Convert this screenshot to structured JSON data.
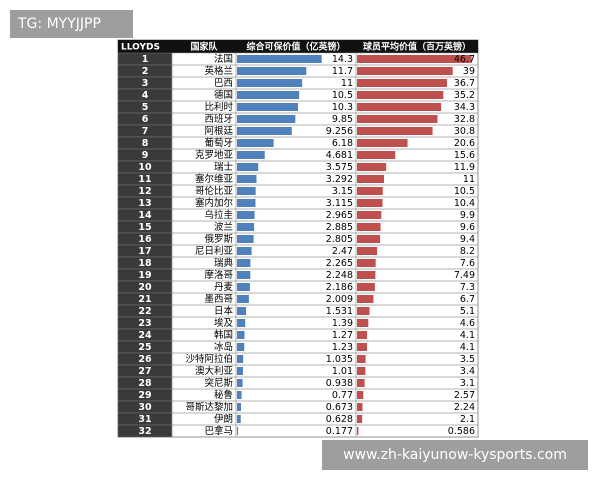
{
  "watermark_top": "TG: MYYJJPP",
  "watermark_bottom": "www.zh-kaiyunow-kysports.com",
  "table": {
    "header": [
      "LLOYDS",
      "国家队",
      "综合可保价值（亿英镑）",
      "球员平均价值（百万英镑）"
    ],
    "colors": [
      "#4f81bd",
      "#c0504d"
    ],
    "rows": [
      {
        "rank": 1,
        "country": "法国",
        "value": 14.3,
        "avg": 46.7
      },
      {
        "rank": 2,
        "country": "英格兰",
        "value": 11.7,
        "avg": 39
      },
      {
        "rank": 3,
        "country": "巴西",
        "value": 11,
        "avg": 36.7
      },
      {
        "rank": 4,
        "country": "德国",
        "value": 10.5,
        "avg": 35.2
      },
      {
        "rank": 5,
        "country": "比利时",
        "value": 10.3,
        "avg": 34.3
      },
      {
        "rank": 6,
        "country": "西班牙",
        "value": 9.85,
        "avg": 32.8
      },
      {
        "rank": 7,
        "country": "阿根廷",
        "value": 9.256,
        "avg": 30.8
      },
      {
        "rank": 8,
        "country": "葡萄牙",
        "value": 6.18,
        "avg": 20.6
      },
      {
        "rank": 9,
        "country": "克罗地亚",
        "value": 4.681,
        "avg": 15.6
      },
      {
        "rank": 10,
        "country": "瑞士",
        "value": 3.575,
        "avg": 11.9
      },
      {
        "rank": 11,
        "country": "塞尔维亚",
        "value": 3.292,
        "avg": 11
      },
      {
        "rank": 12,
        "country": "哥伦比亚",
        "value": 3.15,
        "avg": 10.5
      },
      {
        "rank": 13,
        "country": "塞内加尔",
        "value": 3.115,
        "avg": 10.4
      },
      {
        "rank": 14,
        "country": "乌拉圭",
        "value": 2.965,
        "avg": 9.9
      },
      {
        "rank": 15,
        "country": "波兰",
        "value": 2.885,
        "avg": 9.6
      },
      {
        "rank": 16,
        "country": "俄罗斯",
        "value": 2.805,
        "avg": 9.4
      },
      {
        "rank": 17,
        "country": "尼日利亚",
        "value": 2.47,
        "avg": 8.2
      },
      {
        "rank": 18,
        "country": "瑞典",
        "value": 2.265,
        "avg": 7.6
      },
      {
        "rank": 19,
        "country": "摩洛哥",
        "value": 2.248,
        "avg": 7.49
      },
      {
        "rank": 20,
        "country": "丹麦",
        "value": 2.186,
        "avg": 7.3
      },
      {
        "rank": 21,
        "country": "墨西哥",
        "value": 2.009,
        "avg": 6.7
      },
      {
        "rank": 22,
        "country": "日本",
        "value": 1.531,
        "avg": 5.1
      },
      {
        "rank": 23,
        "country": "埃及",
        "value": 1.39,
        "avg": 4.6
      },
      {
        "rank": 24,
        "country": "韩国",
        "value": 1.27,
        "avg": 4.1
      },
      {
        "rank": 25,
        "country": "冰岛",
        "value": 1.23,
        "avg": 4.1
      },
      {
        "rank": 26,
        "country": "沙特阿拉伯",
        "value": 1.035,
        "avg": 3.5
      },
      {
        "rank": 27,
        "country": "澳大利亚",
        "value": 1.01,
        "avg": 3.4
      },
      {
        "rank": 28,
        "country": "突尼斯",
        "value": 0.938,
        "avg": 3.1
      },
      {
        "rank": 29,
        "country": "秘鲁",
        "value": 0.77,
        "avg": 2.57
      },
      {
        "rank": 30,
        "country": "哥斯达黎加",
        "value": 0.673,
        "avg": 2.24
      },
      {
        "rank": 31,
        "country": "伊朗",
        "value": 0.628,
        "avg": 2.1
      },
      {
        "rank": 32,
        "country": "巴拿马",
        "value": 0.177,
        "avg": 0.586
      }
    ]
  }
}
